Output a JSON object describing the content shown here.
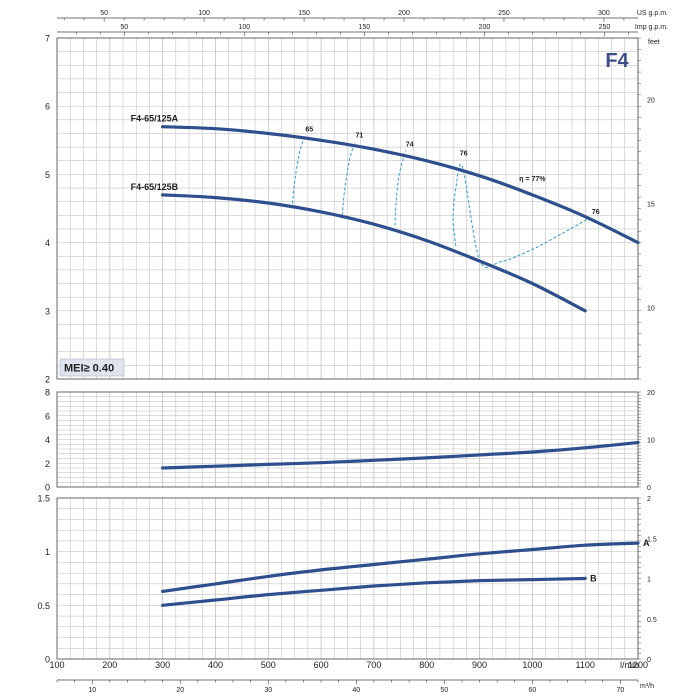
{
  "chart_data": {
    "type": "line",
    "badge": "F4",
    "mei_label": "MEI≥ 0.40",
    "colors": {
      "curve": "#2e4f8e",
      "efficiency": "#2a9fd6",
      "grid": "#b9b9b9",
      "frame": "#666666"
    },
    "x_axis": {
      "unit": "l/min",
      "range": [
        100,
        1200
      ],
      "ticks": [
        100,
        200,
        300,
        400,
        500,
        600,
        700,
        800,
        900,
        1000,
        1100,
        1200
      ]
    },
    "top_axes": [
      {
        "unit": "US g.p.m.",
        "ticks": [
          50,
          100,
          150,
          200,
          250,
          300
        ]
      },
      {
        "unit": "Imp g.p.m.",
        "ticks": [
          50,
          100,
          150,
          200,
          250
        ]
      }
    ],
    "bottom_secondary_axis": {
      "unit": "m³/h",
      "ticks": [
        10,
        20,
        30,
        40,
        50,
        60,
        70
      ]
    },
    "panels": [
      {
        "id": "head",
        "y_range": [
          2,
          7
        ],
        "y_ticks": [
          2,
          3,
          4,
          5,
          6,
          7
        ],
        "right_axis": {
          "unit": "feet",
          "ticks": [
            10,
            15,
            20
          ]
        },
        "series": [
          {
            "name": "F4-65/125A",
            "x": [
              300,
              400,
              500,
              600,
              700,
              800,
              900,
              1000,
              1100,
              1200
            ],
            "y": [
              5.7,
              5.67,
              5.6,
              5.5,
              5.37,
              5.2,
              4.98,
              4.7,
              4.38,
              4.0
            ]
          },
          {
            "name": "F4-65/125B",
            "x": [
              300,
              400,
              500,
              600,
              700,
              800,
              900,
              1000,
              1100
            ],
            "y": [
              4.7,
              4.66,
              4.58,
              4.45,
              4.27,
              4.03,
              3.73,
              3.4,
              3.0
            ]
          }
        ],
        "efficiency_lines": [
          {
            "label": "65",
            "points": [
              [
                545,
                4.5
              ],
              [
                550,
                4.9
              ],
              [
                560,
                5.35
              ],
              [
                570,
                5.57
              ]
            ]
          },
          {
            "label": "71",
            "points": [
              [
                640,
                4.4
              ],
              [
                645,
                4.8
              ],
              [
                655,
                5.25
              ],
              [
                665,
                5.48
              ]
            ]
          },
          {
            "label": "74",
            "points": [
              [
                740,
                4.25
              ],
              [
                742,
                4.6
              ],
              [
                748,
                5.0
              ],
              [
                760,
                5.35
              ]
            ]
          },
          {
            "label": "76",
            "points": [
              [
                855,
                3.95
              ],
              [
                850,
                4.35
              ],
              [
                855,
                4.8
              ],
              [
                868,
                5.1
              ],
              [
                900,
                3.75
              ],
              [
                940,
                3.72
              ],
              [
                1000,
                3.9
              ],
              [
                1060,
                4.15
              ],
              [
                1110,
                4.37
              ]
            ],
            "label_at": [
              870,
              5.22
            ],
            "second_label": "76",
            "second_label_at": [
              1120,
              4.42
            ]
          }
        ],
        "eta_label": "η = 77%",
        "eta_label_at": [
          1000,
          4.9
        ]
      },
      {
        "id": "npsh",
        "y_range": [
          0,
          8
        ],
        "y_ticks": [
          0,
          2,
          4,
          6,
          8
        ],
        "right_axis": {
          "ticks": [
            0,
            10,
            20
          ]
        },
        "series": [
          {
            "name": "",
            "x": [
              300,
              400,
              500,
              600,
              700,
              800,
              900,
              1000,
              1100,
              1200
            ],
            "y": [
              1.6,
              1.75,
              1.9,
              2.05,
              2.25,
              2.45,
              2.7,
              2.95,
              3.3,
              3.75
            ]
          }
        ]
      },
      {
        "id": "power",
        "y_range": [
          0,
          1.5
        ],
        "y_ticks": [
          "0",
          "0.5",
          "1",
          "1.5"
        ],
        "right_axis": {
          "ticks": [
            "0",
            "0.5",
            "1",
            "1.5",
            "2"
          ]
        },
        "series": [
          {
            "name": "A",
            "x": [
              300,
              400,
              500,
              600,
              700,
              800,
              900,
              1000,
              1100,
              1200
            ],
            "y": [
              0.63,
              0.7,
              0.77,
              0.83,
              0.88,
              0.93,
              0.98,
              1.02,
              1.06,
              1.08
            ]
          },
          {
            "name": "B",
            "x": [
              300,
              400,
              500,
              600,
              700,
              800,
              900,
              1000,
              1100
            ],
            "y": [
              0.5,
              0.55,
              0.6,
              0.64,
              0.68,
              0.71,
              0.73,
              0.74,
              0.75
            ]
          }
        ]
      }
    ]
  }
}
